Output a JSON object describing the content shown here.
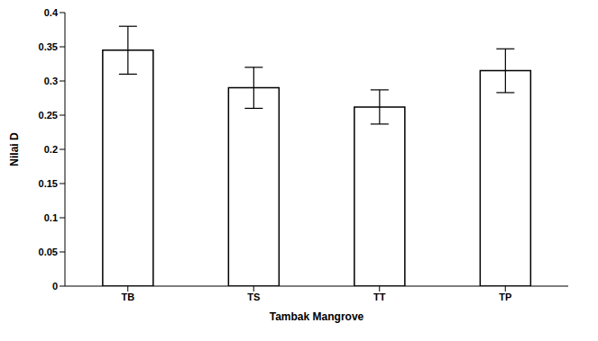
{
  "chart_data": {
    "type": "bar",
    "categories": [
      "TB",
      "TS",
      "TT",
      "TP"
    ],
    "values": [
      0.345,
      0.29,
      0.262,
      0.315
    ],
    "errors": [
      0.035,
      0.03,
      0.025,
      0.032
    ],
    "color": "#ffffff",
    "x_label": "Tambak Mangrove",
    "y_label": "Nilai D",
    "ylim": [
      0,
      0.4
    ],
    "yticks": [
      0,
      0.05,
      0.1,
      0.15,
      0.2,
      0.25,
      0.3,
      0.35,
      0.4
    ],
    "grid": false
  }
}
